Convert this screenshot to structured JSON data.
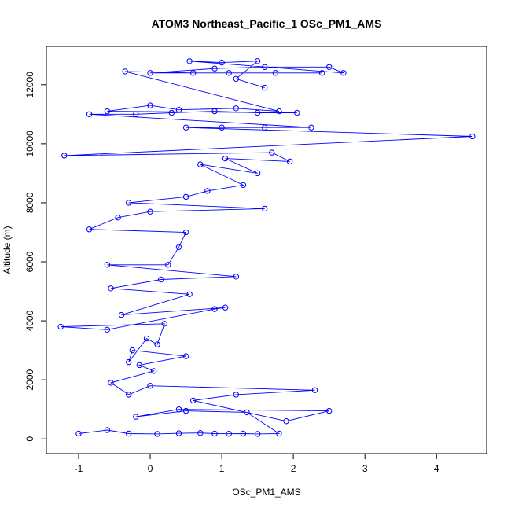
{
  "chart_data": {
    "type": "scatter",
    "title": "ATOM3 Northeast_Pacific_1 OSc_PM1_AMS",
    "xlabel": "OSc_PM1_AMS",
    "ylabel": "Altitude (m)",
    "xlim": [
      -1.45,
      4.7
    ],
    "ylim": [
      -500,
      13300
    ],
    "xticks": [
      -1,
      0,
      1,
      2,
      3,
      4
    ],
    "yticks": [
      0,
      2000,
      4000,
      6000,
      8000,
      10000,
      12000
    ],
    "grid": false,
    "legend": "none",
    "series": [
      {
        "color": "#0000ff",
        "marker": "open-circle",
        "line": true,
        "points": [
          [
            -1.0,
            180
          ],
          [
            -0.6,
            300
          ],
          [
            -0.3,
            180
          ],
          [
            0.1,
            170
          ],
          [
            0.4,
            190
          ],
          [
            0.7,
            200
          ],
          [
            0.9,
            180
          ],
          [
            1.1,
            175
          ],
          [
            1.3,
            180
          ],
          [
            1.5,
            170
          ],
          [
            1.8,
            180
          ],
          [
            1.35,
            900
          ],
          [
            0.5,
            950
          ],
          [
            -0.2,
            750
          ],
          [
            0.4,
            1000
          ],
          [
            2.5,
            950
          ],
          [
            1.9,
            600
          ],
          [
            0.6,
            1300
          ],
          [
            1.2,
            1500
          ],
          [
            2.3,
            1650
          ],
          [
            0.0,
            1800
          ],
          [
            -0.3,
            1500
          ],
          [
            -0.55,
            1900
          ],
          [
            0.05,
            2300
          ],
          [
            -0.15,
            2500
          ],
          [
            0.5,
            2800
          ],
          [
            -0.25,
            3000
          ],
          [
            -0.3,
            2600
          ],
          [
            -0.05,
            3400
          ],
          [
            0.1,
            3200
          ],
          [
            0.2,
            3900
          ],
          [
            -1.25,
            3800
          ],
          [
            -0.6,
            3700
          ],
          [
            0.9,
            4400
          ],
          [
            1.05,
            4450
          ],
          [
            -0.4,
            4200
          ],
          [
            0.55,
            4900
          ],
          [
            -0.55,
            5100
          ],
          [
            0.15,
            5400
          ],
          [
            1.2,
            5500
          ],
          [
            -0.6,
            5900
          ],
          [
            0.25,
            5900
          ],
          [
            0.4,
            6500
          ],
          [
            0.5,
            7000
          ],
          [
            -0.85,
            7100
          ],
          [
            -0.45,
            7500
          ],
          [
            0.0,
            7700
          ],
          [
            1.6,
            7800
          ],
          [
            -0.3,
            8000
          ],
          [
            0.5,
            8200
          ],
          [
            0.8,
            8400
          ],
          [
            1.3,
            8600
          ],
          [
            0.7,
            9300
          ],
          [
            1.5,
            9000
          ],
          [
            1.05,
            9500
          ],
          [
            1.95,
            9400
          ],
          [
            1.7,
            9700
          ],
          [
            -1.2,
            9600
          ],
          [
            4.5,
            10250
          ],
          [
            0.5,
            10550
          ],
          [
            1.0,
            10550
          ],
          [
            1.6,
            10550
          ],
          [
            2.25,
            10550
          ],
          [
            -0.85,
            11000
          ],
          [
            -0.2,
            11000
          ],
          [
            0.3,
            11050
          ],
          [
            0.9,
            11100
          ],
          [
            1.5,
            11050
          ],
          [
            2.05,
            11050
          ],
          [
            -0.6,
            11100
          ],
          [
            0.0,
            11300
          ],
          [
            0.4,
            11150
          ],
          [
            1.2,
            11200
          ],
          [
            1.8,
            11100
          ],
          [
            -0.35,
            12450
          ],
          [
            0.6,
            12400
          ],
          [
            1.1,
            12400
          ],
          [
            1.75,
            12400
          ],
          [
            2.4,
            12400
          ],
          [
            0.0,
            12400
          ],
          [
            0.9,
            12550
          ],
          [
            1.6,
            12600
          ],
          [
            2.5,
            12600
          ],
          [
            2.7,
            12400
          ],
          [
            0.55,
            12800
          ],
          [
            1.0,
            12750
          ],
          [
            1.5,
            12800
          ],
          [
            1.2,
            12200
          ],
          [
            1.6,
            11900
          ]
        ]
      }
    ]
  }
}
